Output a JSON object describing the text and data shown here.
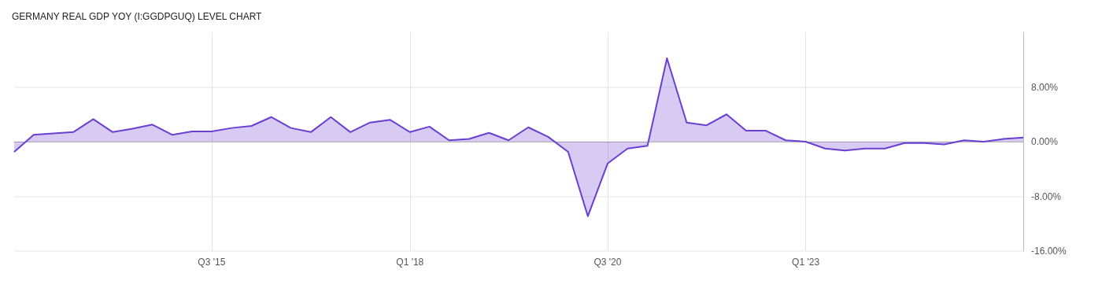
{
  "chart_data": {
    "type": "area",
    "title": "GERMANY REAL GDP YOY (I:GGDPGUQ) LEVEL CHART",
    "x": [
      "2013-01",
      "2013-04",
      "2013-07",
      "2013-10",
      "2014-01",
      "2014-04",
      "2014-07",
      "2014-10",
      "2015-01",
      "2015-04",
      "2015-07",
      "2015-10",
      "2016-01",
      "2016-04",
      "2016-07",
      "2016-10",
      "2017-01",
      "2017-04",
      "2017-07",
      "2017-10",
      "2018-01",
      "2018-04",
      "2018-07",
      "2018-10",
      "2019-01",
      "2019-04",
      "2019-07",
      "2019-10",
      "2020-01",
      "2020-04",
      "2020-07",
      "2020-10",
      "2021-01",
      "2021-04",
      "2021-07",
      "2021-10",
      "2022-01",
      "2022-04",
      "2022-07",
      "2022-10",
      "2023-01",
      "2023-04",
      "2023-07",
      "2023-10",
      "2024-01",
      "2024-04",
      "2024-07",
      "2024-10",
      "2025-01",
      "2025-04",
      "2025-07",
      "2025-10"
    ],
    "series": [
      {
        "color": "#6a3fd1",
        "values": [
          -1.5,
          1.0,
          1.2,
          1.4,
          3.3,
          1.4,
          1.9,
          2.5,
          1.0,
          1.5,
          1.5,
          2.0,
          2.3,
          3.6,
          2.0,
          1.4,
          3.6,
          1.4,
          2.8,
          3.2,
          1.4,
          2.2,
          0.2,
          0.4,
          1.3,
          0.2,
          2.1,
          0.7,
          -1.5,
          -10.9,
          -3.2,
          -1.0,
          -0.6,
          12.2,
          2.8,
          2.4,
          4.0,
          1.6,
          1.6,
          0.2,
          0.0,
          -1.0,
          -1.3,
          -1.0,
          -1.0,
          -0.2,
          -0.2,
          -0.4,
          0.2,
          0.0,
          0.4,
          0.6
        ]
      }
    ],
    "xlim": [
      "2013-01",
      "2025-10"
    ],
    "xticks": [
      {
        "value": "2015-07",
        "label": "Q3 '15"
      },
      {
        "value": "2018-01",
        "label": "Q1 '18"
      },
      {
        "value": "2020-07",
        "label": "Q3 '20"
      },
      {
        "value": "2023-01",
        "label": "Q1 '23"
      }
    ],
    "ylim": [
      -16,
      16
    ],
    "yticks": [
      {
        "value": -16,
        "label": "-16.00%"
      },
      {
        "value": -8,
        "label": "-8.00%"
      },
      {
        "value": 0,
        "label": "0.00%"
      },
      {
        "value": 8,
        "label": "8.00%"
      }
    ],
    "grid": true,
    "marker": "none"
  }
}
